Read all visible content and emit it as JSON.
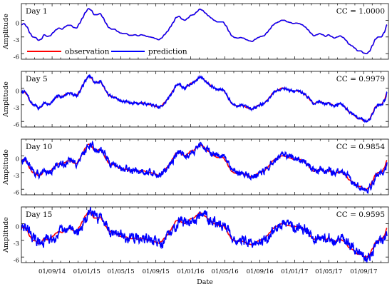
{
  "chart_data": [
    {
      "type": "line",
      "title": "Day 1",
      "annotation": "CC = 1.0000",
      "ylabel": "Amplitude",
      "xlabel": "",
      "ylim": [
        -7,
        3
      ],
      "yticks": [
        -6,
        -3,
        0
      ],
      "x_tick_labels": [
        "01/09/14",
        "01/01/15",
        "01/05/15",
        "01/09/15",
        "01/01/16",
        "01/05/16",
        "01/09/16",
        "01/01/17",
        "01/05/17",
        "01/09/17"
      ],
      "grid": false,
      "legend": {
        "placement": "bottom-left",
        "entries": [
          "observation",
          "prediction"
        ]
      },
      "series": [
        {
          "name": "observation",
          "color": "#ff0000"
        },
        {
          "name": "prediction",
          "color": "#0000ff"
        }
      ]
    },
    {
      "type": "line",
      "title": "Day 5",
      "annotation": "CC = 0.9979",
      "ylabel": "Amplitude",
      "xlabel": "",
      "ylim": [
        -7,
        3
      ],
      "yticks": [
        -6,
        -3,
        0
      ],
      "x_tick_labels": [
        "01/09/14",
        "01/01/15",
        "01/05/15",
        "01/09/15",
        "01/01/16",
        "01/05/16",
        "01/09/16",
        "01/01/17",
        "01/05/17",
        "01/09/17"
      ],
      "grid": false,
      "series": [
        {
          "name": "observation",
          "color": "#ff0000"
        },
        {
          "name": "prediction",
          "color": "#0000ff"
        }
      ]
    },
    {
      "type": "line",
      "title": "Day 10",
      "annotation": "CC = 0.9854",
      "ylabel": "Amplitude",
      "xlabel": "",
      "ylim": [
        -7,
        3
      ],
      "yticks": [
        -6,
        -3,
        0
      ],
      "x_tick_labels": [
        "01/09/14",
        "01/01/15",
        "01/05/15",
        "01/09/15",
        "01/01/16",
        "01/05/16",
        "01/09/16",
        "01/01/17",
        "01/05/17",
        "01/09/17"
      ],
      "grid": false,
      "series": [
        {
          "name": "observation",
          "color": "#ff0000"
        },
        {
          "name": "prediction",
          "color": "#0000ff"
        }
      ]
    },
    {
      "type": "line",
      "title": "Day 15",
      "annotation": "CC = 0.9595",
      "ylabel": "Amplitude",
      "xlabel": "Date",
      "ylim": [
        -7,
        3
      ],
      "yticks": [
        -6,
        -3,
        0
      ],
      "x_tick_labels": [
        "01/09/14",
        "01/01/15",
        "01/05/15",
        "01/09/15",
        "01/01/16",
        "01/05/16",
        "01/09/16",
        "01/01/17",
        "01/05/17",
        "01/09/17"
      ],
      "grid": false,
      "series": [
        {
          "name": "observation",
          "color": "#ff0000"
        },
        {
          "name": "prediction",
          "color": "#0000ff"
        }
      ]
    }
  ],
  "observation_curve": [
    [
      "2014-05-16",
      -0.8
    ],
    [
      "2014-05-25",
      -0.6
    ],
    [
      "2014-06-05",
      -1.2
    ],
    [
      "2014-06-15",
      -2.3
    ],
    [
      "2014-06-25",
      -3.0
    ],
    [
      "2014-07-05",
      -3.1
    ],
    [
      "2014-07-15",
      -3.6
    ],
    [
      "2014-07-25",
      -3.4
    ],
    [
      "2014-08-04",
      -2.6
    ],
    [
      "2014-08-15",
      -2.9
    ],
    [
      "2014-08-25",
      -2.8
    ],
    [
      "2014-09-05",
      -2.2
    ],
    [
      "2014-09-15",
      -1.7
    ],
    [
      "2014-09-25",
      -1.4
    ],
    [
      "2014-10-06",
      -1.6
    ],
    [
      "2014-10-16",
      -1.2
    ],
    [
      "2014-10-26",
      -0.9
    ],
    [
      "2014-11-06",
      -0.9
    ],
    [
      "2014-11-16",
      -1.3
    ],
    [
      "2014-11-26",
      -1.4
    ],
    [
      "2014-12-06",
      -0.6
    ],
    [
      "2014-12-17",
      0.4
    ],
    [
      "2014-12-27",
      1.4
    ],
    [
      "2015-01-07",
      2.1
    ],
    [
      "2015-01-17",
      1.8
    ],
    [
      "2015-01-27",
      1.0
    ],
    [
      "2015-02-06",
      1.0
    ],
    [
      "2015-02-17",
      1.2
    ],
    [
      "2015-02-27",
      0.5
    ],
    [
      "2015-03-09",
      -0.5
    ],
    [
      "2015-03-19",
      -1.3
    ],
    [
      "2015-03-30",
      -1.6
    ],
    [
      "2015-04-09",
      -1.6
    ],
    [
      "2015-04-19",
      -2.0
    ],
    [
      "2015-04-30",
      -2.3
    ],
    [
      "2015-05-10",
      -2.4
    ],
    [
      "2015-05-20",
      -2.4
    ],
    [
      "2015-05-31",
      -2.7
    ],
    [
      "2015-06-10",
      -2.7
    ],
    [
      "2015-06-20",
      -2.6
    ],
    [
      "2015-07-01",
      -2.8
    ],
    [
      "2015-07-11",
      -2.6
    ],
    [
      "2015-07-21",
      -2.7
    ],
    [
      "2015-07-31",
      -2.9
    ],
    [
      "2015-08-11",
      -3.0
    ],
    [
      "2015-08-21",
      -3.1
    ],
    [
      "2015-08-31",
      -3.3
    ],
    [
      "2015-09-11",
      -3.5
    ],
    [
      "2015-09-21",
      -3.2
    ],
    [
      "2015-10-01",
      -2.6
    ],
    [
      "2015-10-12",
      -2.0
    ],
    [
      "2015-10-22",
      -1.2
    ],
    [
      "2015-11-01",
      -0.4
    ],
    [
      "2015-11-11",
      0.5
    ],
    [
      "2015-11-22",
      0.7
    ],
    [
      "2015-12-02",
      0.2
    ],
    [
      "2015-12-12",
      0.0
    ],
    [
      "2015-12-23",
      0.4
    ],
    [
      "2016-01-02",
      0.9
    ],
    [
      "2016-01-12",
      1.0
    ],
    [
      "2016-01-23",
      1.5
    ],
    [
      "2016-02-02",
      2.0
    ],
    [
      "2016-02-12",
      1.8
    ],
    [
      "2016-02-22",
      1.3
    ],
    [
      "2016-03-04",
      0.8
    ],
    [
      "2016-03-14",
      0.4
    ],
    [
      "2016-03-24",
      0.0
    ],
    [
      "2016-04-04",
      -0.3
    ],
    [
      "2016-04-14",
      -0.3
    ],
    [
      "2016-04-24",
      -0.3
    ],
    [
      "2016-05-05",
      -1.0
    ],
    [
      "2016-05-15",
      -2.0
    ],
    [
      "2016-05-25",
      -2.8
    ],
    [
      "2016-06-04",
      -3.1
    ],
    [
      "2016-06-15",
      -3.2
    ],
    [
      "2016-06-25",
      -3.1
    ],
    [
      "2016-07-05",
      -3.2
    ],
    [
      "2016-07-16",
      -3.5
    ],
    [
      "2016-07-26",
      -3.7
    ],
    [
      "2016-08-05",
      -3.8
    ],
    [
      "2016-08-16",
      -3.4
    ],
    [
      "2016-08-26",
      -3.1
    ],
    [
      "2016-09-05",
      -2.9
    ],
    [
      "2016-09-15",
      -2.8
    ],
    [
      "2016-09-26",
      -2.2
    ],
    [
      "2016-10-06",
      -1.6
    ],
    [
      "2016-10-16",
      -0.9
    ],
    [
      "2016-10-27",
      -0.5
    ],
    [
      "2016-11-06",
      -0.3
    ],
    [
      "2016-11-16",
      0.0
    ],
    [
      "2016-11-26",
      0.0
    ],
    [
      "2016-12-07",
      -0.3
    ],
    [
      "2016-12-17",
      -0.4
    ],
    [
      "2016-12-27",
      -0.6
    ],
    [
      "2017-01-07",
      -0.5
    ],
    [
      "2017-01-17",
      -0.6
    ],
    [
      "2017-01-27",
      -0.8
    ],
    [
      "2017-02-07",
      -1.2
    ],
    [
      "2017-02-17",
      -1.7
    ],
    [
      "2017-02-27",
      -2.3
    ],
    [
      "2017-03-10",
      -2.8
    ],
    [
      "2017-03-20",
      -2.6
    ],
    [
      "2017-03-30",
      -2.4
    ],
    [
      "2017-04-10",
      -2.6
    ],
    [
      "2017-04-20",
      -2.9
    ],
    [
      "2017-04-30",
      -2.6
    ],
    [
      "2017-05-10",
      -2.9
    ],
    [
      "2017-05-21",
      -3.2
    ],
    [
      "2017-05-31",
      -3.0
    ],
    [
      "2017-06-10",
      -2.8
    ],
    [
      "2017-06-21",
      -3.1
    ],
    [
      "2017-07-01",
      -3.6
    ],
    [
      "2017-07-11",
      -4.3
    ],
    [
      "2017-07-22",
      -4.6
    ],
    [
      "2017-08-01",
      -5.0
    ],
    [
      "2017-08-11",
      -5.5
    ],
    [
      "2017-08-22",
      -5.5
    ],
    [
      "2017-09-01",
      -5.9
    ],
    [
      "2017-09-11",
      -6.0
    ],
    [
      "2017-09-21",
      -5.6
    ],
    [
      "2017-10-02",
      -4.5
    ],
    [
      "2017-10-12",
      -3.4
    ],
    [
      "2017-10-22",
      -3.0
    ],
    [
      "2017-11-02",
      -3.0
    ],
    [
      "2017-11-12",
      -2.2
    ],
    [
      "2017-11-22",
      -0.8
    ]
  ]
}
